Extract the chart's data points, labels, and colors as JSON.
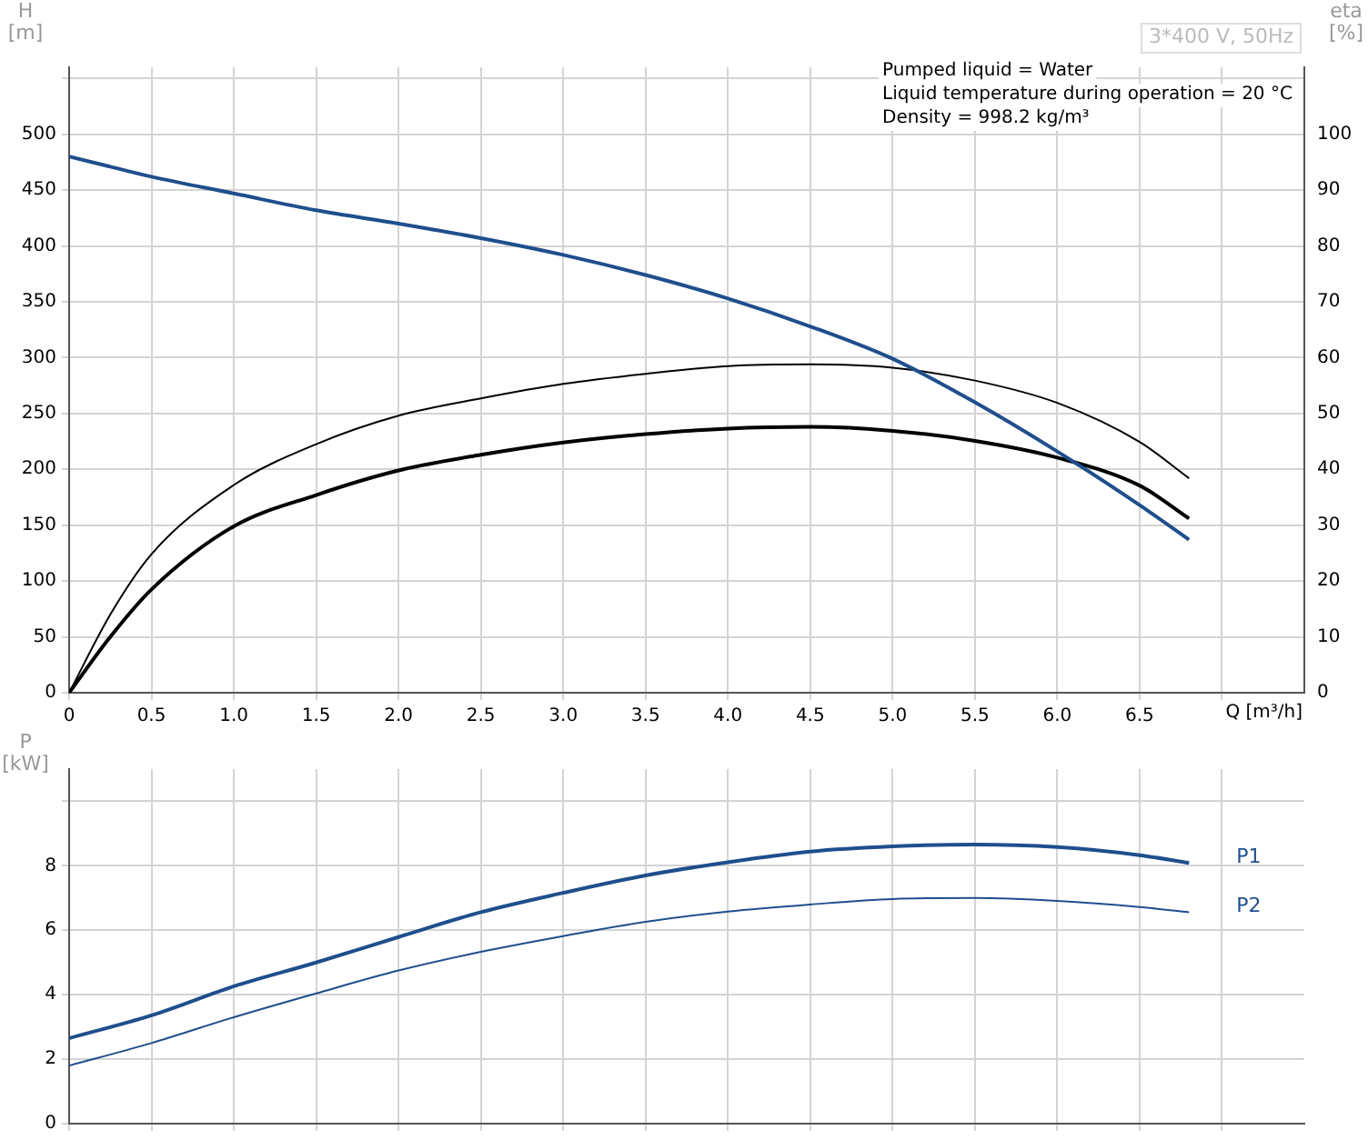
{
  "chart_data": [
    {
      "type": "line",
      "xlabel": "Q [m³/h]",
      "ylabel": "H [m]",
      "y2label": "eta [%]",
      "marker": "none",
      "grid": true,
      "annotations": [
        "3*400 V, 50Hz",
        "Pumped liquid = Water",
        "Liquid temperature during operation = 20 °C",
        "Density = 998.2 kg/m³"
      ],
      "x": [
        0,
        0.25,
        0.5,
        1,
        1.5,
        2,
        2.5,
        3,
        3.5,
        4,
        4.5,
        5,
        5.5,
        6,
        6.5,
        6.8
      ],
      "xlim": [
        0,
        7.5
      ],
      "xticks": [
        0,
        0.5,
        {
          "value": 1,
          "label": "1.0"
        },
        1.5,
        {
          "value": 2,
          "label": "2.0"
        },
        2.5,
        {
          "value": 3,
          "label": "3.0"
        },
        3.5,
        {
          "value": 4,
          "label": "4.0"
        },
        4.5,
        {
          "value": 5,
          "label": "5.0"
        },
        5.5,
        {
          "value": 6,
          "label": "6.0"
        },
        6.5,
        {
          "value": 7,
          "label": null
        }
      ],
      "ylim": [
        0,
        560
      ],
      "yticks": [
        0,
        50,
        100,
        150,
        200,
        250,
        300,
        350,
        400,
        450,
        500,
        {
          "value": 550,
          "label": null
        }
      ],
      "y2lim": [
        0,
        112
      ],
      "y2ticks": [
        0,
        10,
        20,
        30,
        40,
        50,
        60,
        70,
        80,
        90,
        100
      ],
      "series": [
        {
          "color": "#1f4e8c",
          "values": [
            480,
            471,
            462,
            447,
            432,
            420,
            407,
            392,
            374,
            353,
            328,
            299,
            260,
            216,
            168,
            137
          ]
        },
        {
          "color": "#000000",
          "axis": "y2",
          "values": [
            0,
            14,
            24.8,
            37.2,
            44.5,
            49.6,
            52.7,
            55.3,
            57.1,
            58.5,
            58.8,
            58.2,
            55.9,
            51.9,
            44.9,
            38.4
          ]
        },
        {
          "color": "#000000",
          "axis": "y2",
          "values": [
            0,
            10,
            18.5,
            29.8,
            35.4,
            39.8,
            42.6,
            44.8,
            46.3,
            47.3,
            47.6,
            46.9,
            45.1,
            42.1,
            37.1,
            31.2
          ]
        }
      ]
    },
    {
      "type": "line",
      "ylabel": "P [kW]",
      "marker": "none",
      "grid": true,
      "tick_labels": "y",
      "x": [
        0,
        0.5,
        1,
        1.5,
        2,
        2.5,
        3,
        3.5,
        4,
        4.5,
        5,
        5.5,
        6,
        6.5,
        6.8
      ],
      "xlim": [
        0,
        7.5
      ],
      "xticks": [
        0,
        0.5,
        1,
        1.5,
        2,
        2.5,
        3,
        3.5,
        4,
        4.5,
        5,
        5.5,
        6,
        6.5,
        7
      ],
      "ylim": [
        0,
        11
      ],
      "yticks": [
        0,
        2,
        4,
        6,
        8,
        {
          "value": 10,
          "label": null
        }
      ],
      "series": [
        {
          "name": "P1",
          "color": "#1f4e8c",
          "values": [
            2.65,
            3.36,
            4.26,
            5.0,
            5.79,
            6.56,
            7.16,
            7.7,
            8.11,
            8.44,
            8.6,
            8.66,
            8.58,
            8.33,
            8.09
          ]
        },
        {
          "name": "P2",
          "color": "#1f4e8c",
          "values": [
            1.8,
            2.5,
            3.3,
            4.04,
            4.75,
            5.33,
            5.82,
            6.26,
            6.58,
            6.8,
            6.97,
            7.0,
            6.91,
            6.72,
            6.56
          ]
        }
      ]
    }
  ]
}
